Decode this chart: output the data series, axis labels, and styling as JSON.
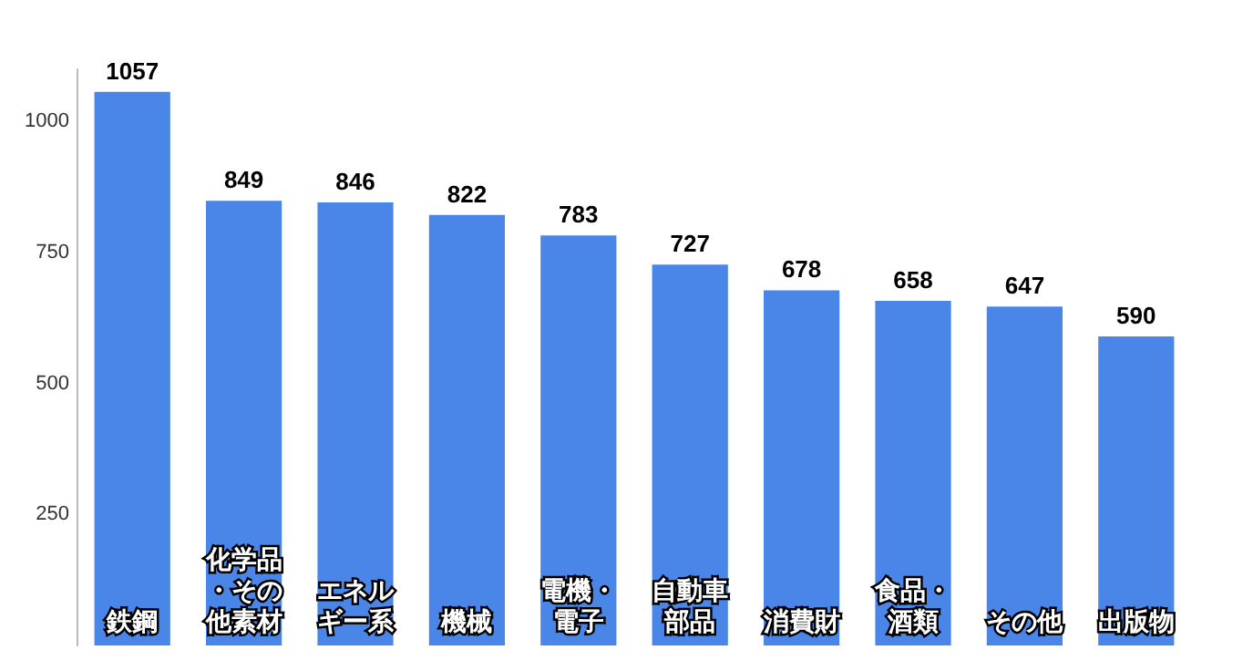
{
  "chart_data": {
    "type": "bar",
    "categories": [
      "鉄鋼",
      "化学品・その他素材",
      "エネルギー系",
      "機械",
      "電機・電子",
      "自動車部品",
      "消費財",
      "食品・酒類",
      "その他",
      "出版物"
    ],
    "values": [
      1057,
      849,
      846,
      822,
      783,
      727,
      678,
      658,
      647,
      590
    ],
    "color": "#4a86e8",
    "ylim": [
      0,
      1100
    ],
    "yticks": [
      250,
      500,
      750,
      1000
    ],
    "data_labels": true,
    "grid": false
  }
}
